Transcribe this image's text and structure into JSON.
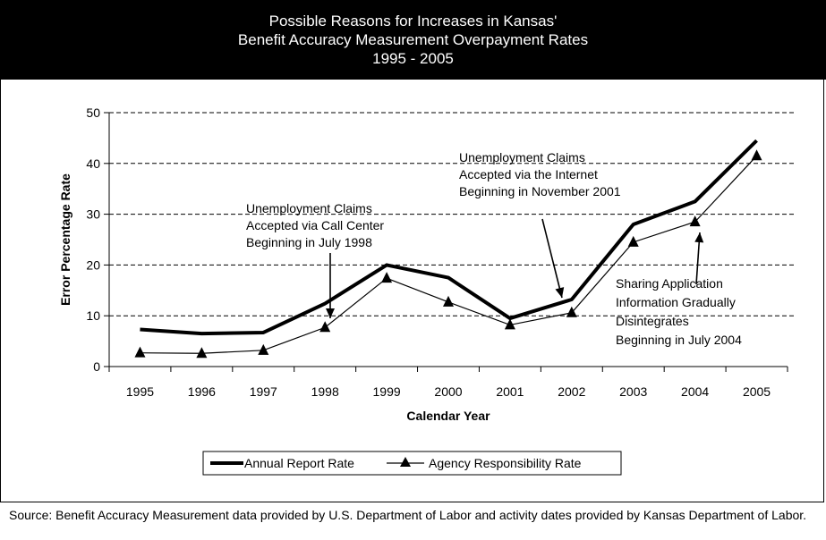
{
  "chart_data": {
    "type": "line",
    "title_lines": [
      "Possible Reasons for Increases in Kansas'",
      "Benefit Accuracy Measurement Overpayment Rates",
      "1995 - 2005"
    ],
    "xlabel": "Calendar Year",
    "ylabel": "Error Percentage Rate",
    "categories": [
      "1995",
      "1996",
      "1997",
      "1998",
      "1999",
      "2000",
      "2001",
      "2002",
      "2003",
      "2004",
      "2005"
    ],
    "ylim": [
      0,
      50
    ],
    "yticks": [
      "0",
      "10",
      "20",
      "30",
      "40",
      "50"
    ],
    "grid": "horizontal dashed",
    "legend_position": "bottom",
    "series": [
      {
        "name": "Annual Report Rate",
        "values": [
          7.3,
          6.5,
          6.7,
          12.4,
          20.0,
          17.5,
          9.5,
          13.2,
          28.0,
          32.5,
          44.5
        ],
        "style": "thick line"
      },
      {
        "name": "Agency Responsibility Rate",
        "values": [
          2.7,
          2.6,
          3.2,
          7.7,
          17.4,
          12.7,
          8.2,
          10.6,
          24.5,
          28.5,
          41.5
        ],
        "style": "thin line with triangle markers"
      }
    ],
    "annotations": [
      {
        "lines": [
          "Unemployment Claims",
          "Accepted via Call Center",
          "Beginning in July 1998"
        ]
      },
      {
        "lines": [
          "Unemployment Claims",
          "Accepted via the Internet",
          "Beginning in November 2001"
        ]
      },
      {
        "lines": [
          "Sharing Application",
          "Information Gradually",
          "Disintegrates",
          "Beginning in July 2004"
        ]
      }
    ]
  },
  "source_note": "Source:  Benefit Accuracy Measurement data provided by U.S. Department of Labor and activity dates provided by Kansas Department of Labor."
}
